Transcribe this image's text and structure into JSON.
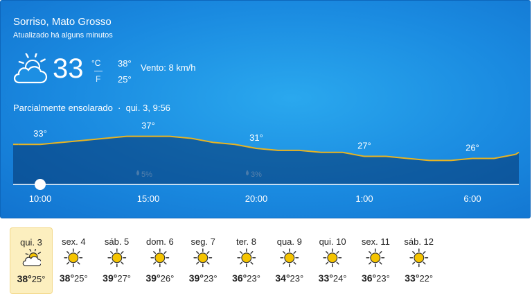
{
  "header": {
    "location": "Sorriso, Mato Grosso",
    "updated": "Atualizado há alguns minutos",
    "icon": "partly-cloudy",
    "temperature": "33",
    "unit_c": "°C",
    "unit_f": "F",
    "high": "38°",
    "low": "25°",
    "wind": "Vento: 8 km/h",
    "condition": "Parcialmente ensolarado  ·  qui. 3, 9:56"
  },
  "hourly": {
    "categories": [
      null,
      "10:00",
      null,
      null,
      null,
      null,
      "15:00",
      null,
      null,
      null,
      null,
      "20:00",
      null,
      null,
      null,
      null,
      "1:00",
      null,
      null,
      null,
      null,
      "6:00",
      null,
      null
    ],
    "values": [
      33,
      33,
      34,
      35,
      36,
      37,
      37,
      37,
      36,
      34,
      33,
      31,
      30,
      30,
      29,
      29,
      27,
      27,
      26,
      25,
      25,
      26,
      26,
      28
    ],
    "value_labels": [
      null,
      "33°",
      null,
      null,
      null,
      null,
      "37°",
      null,
      null,
      null,
      null,
      "31°",
      null,
      null,
      null,
      null,
      "27°",
      null,
      null,
      null,
      null,
      "26°",
      null,
      null
    ],
    "ylim": [
      13,
      40
    ],
    "color": "#e8b422"
  },
  "precipitation": [
    "5%",
    "3%"
  ],
  "daily": [
    {
      "day": "qui. 3",
      "icon": "partly-cloudy",
      "high": "38°",
      "low": "25°",
      "selected": true
    },
    {
      "day": "sex. 4",
      "icon": "sunny",
      "high": "38°",
      "low": "25°"
    },
    {
      "day": "sáb. 5",
      "icon": "sunny",
      "high": "39°",
      "low": "27°"
    },
    {
      "day": "dom. 6",
      "icon": "sunny",
      "high": "39°",
      "low": "26°"
    },
    {
      "day": "seg. 7",
      "icon": "sunny",
      "high": "39°",
      "low": "23°"
    },
    {
      "day": "ter. 8",
      "icon": "sunny",
      "high": "36°",
      "low": "23°"
    },
    {
      "day": "qua. 9",
      "icon": "sunny",
      "high": "34°",
      "low": "23°"
    },
    {
      "day": "qui. 10",
      "icon": "sunny",
      "high": "33°",
      "low": "24°"
    },
    {
      "day": "sex. 11",
      "icon": "sunny",
      "high": "36°",
      "low": "23°"
    },
    {
      "day": "sáb. 12",
      "icon": "sunny",
      "high": "33°",
      "low": "22°"
    }
  ]
}
